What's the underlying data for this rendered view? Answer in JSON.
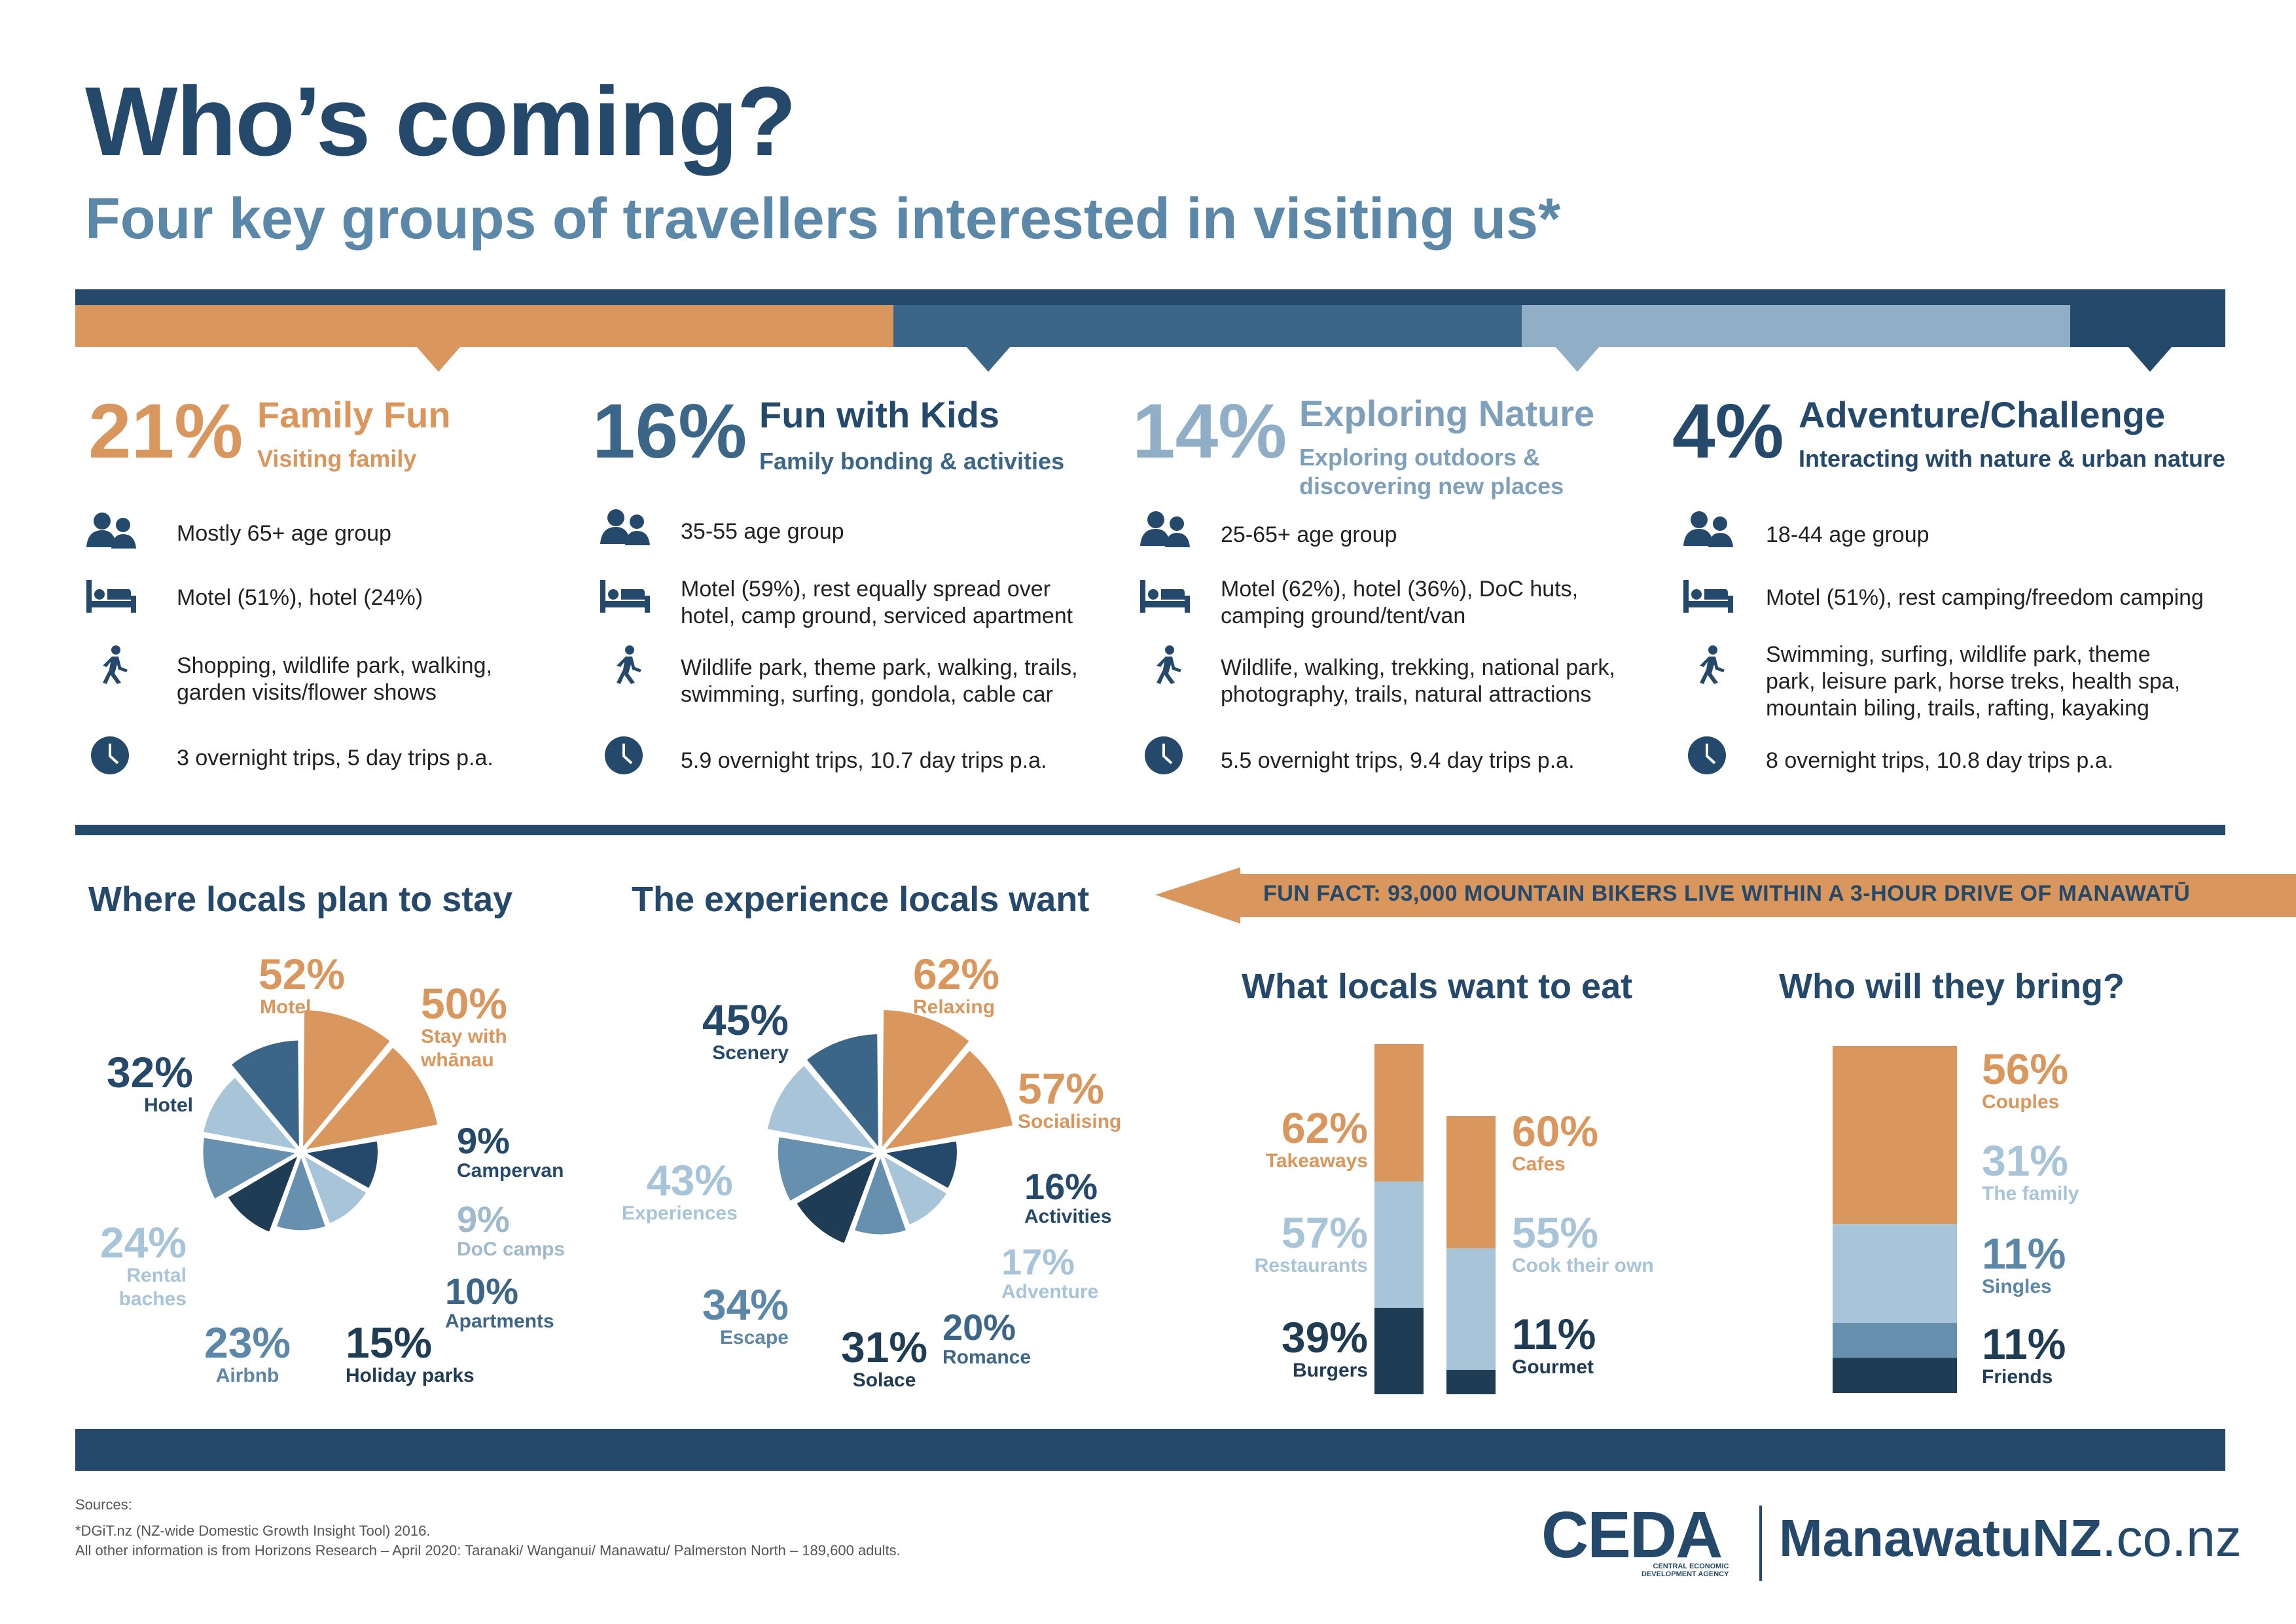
{
  "title": "Who’s coming?",
  "subtitle": "Four key groups of travellers interested in visiting us*",
  "colors": {
    "orange": "#d9975d",
    "navy": "#24496b",
    "mid": "#3b6688",
    "light": "#a8c4d8",
    "lightmid": "#6690ae",
    "dark": "#1f3c55",
    "greylabel": "#9fb9cd"
  },
  "groups": [
    {
      "pct": "21%",
      "name": "Family Fun",
      "sub": "Visiting family",
      "age": "Mostly 65+ age group",
      "stay": "Motel (51%), hotel (24%)",
      "act1": "Shopping, wildlife park, walking,",
      "act2": "garden visits/flower shows",
      "act3": "",
      "trips": "3 overnight trips, 5 day trips p.a."
    },
    {
      "pct": "16%",
      "name": "Fun with Kids",
      "sub": "Family bonding & activities",
      "age": "35-55 age group",
      "stay1": "Motel (59%), rest equally spread over",
      "stay2": "hotel, camp ground, serviced apartment",
      "act1": "Wildlife park, theme park, walking, trails,",
      "act2": "swimming, surfing, gondola, cable car",
      "trips": "5.9 overnight trips, 10.7 day trips p.a."
    },
    {
      "pct": "14%",
      "name": "Exploring Nature",
      "sub1": "Exploring outdoors &",
      "sub2": "discovering new places",
      "age": "25-65+ age group",
      "stay1": "Motel (62%), hotel (36%), DoC huts,",
      "stay2": "camping ground/tent/van",
      "act1": "Wildlife, walking, trekking, national park,",
      "act2": "photography, trails, natural attractions",
      "trips": "5.5 overnight trips, 9.4 day trips p.a."
    },
    {
      "pct": "4%",
      "name": "Adventure/Challenge",
      "sub": "Interacting with nature & urban nature",
      "age": "18-44 age group",
      "stay": "Motel (51%), rest camping/freedom camping",
      "act1": "Swimming, surfing, wildlife park, theme",
      "act2": "park, leisure park, horse treks, health spa,",
      "act3": "mountain biling, trails, rafting, kayaking",
      "trips": "8 overnight trips, 10.8 day trips p.a."
    }
  ],
  "icons": {
    "people": "people-icon",
    "bed": "bed-icon",
    "walk": "walking-person-icon",
    "clock": "clock-icon"
  },
  "fun_fact": "FUN FACT: 93,000 MOUNTAIN BIKERS LIVE WITHIN A 3-HOUR DRIVE OF MANAWATŪ",
  "sections": {
    "stay": "Where locals plan to stay",
    "experience": "The experience locals want",
    "eat": "What locals want to eat",
    "bring": "Who will they bring?"
  },
  "chart_data": [
    {
      "type": "pie",
      "title": "Where locals plan to stay",
      "slices": [
        {
          "label": "Motel",
          "value": 52
        },
        {
          "label": "Stay with whānau",
          "value": 50
        },
        {
          "label": "Campervan",
          "value": 9
        },
        {
          "label": "DoC camps",
          "value": 9
        },
        {
          "label": "Apartments",
          "value": 10
        },
        {
          "label": "Holiday parks",
          "value": 15
        },
        {
          "label": "Airbnb",
          "value": 23
        },
        {
          "label": "Rental baches",
          "value": 24
        },
        {
          "label": "Hotel",
          "value": 32
        }
      ]
    },
    {
      "type": "pie",
      "title": "The experience locals want",
      "slices": [
        {
          "label": "Relaxing",
          "value": 62
        },
        {
          "label": "Socialising",
          "value": 57
        },
        {
          "label": "Activities",
          "value": 16
        },
        {
          "label": "Adventure",
          "value": 17
        },
        {
          "label": "Romance",
          "value": 20
        },
        {
          "label": "Solace",
          "value": 31
        },
        {
          "label": "Escape",
          "value": 34
        },
        {
          "label": "Experiences",
          "value": 43
        },
        {
          "label": "Scenery",
          "value": 45
        }
      ]
    },
    {
      "type": "bar",
      "title": "What locals want to eat",
      "series": [
        {
          "categories": [
            "Takeaways",
            "Restaurants",
            "Burgers"
          ],
          "values": [
            62,
            57,
            39
          ]
        },
        {
          "categories": [
            "Cafes",
            "Cook their own",
            "Gourmet"
          ],
          "values": [
            60,
            55,
            11
          ]
        }
      ]
    },
    {
      "type": "bar",
      "title": "Who will they bring?",
      "categories": [
        "Couples",
        "The family",
        "Singles",
        "Friends"
      ],
      "values": [
        56,
        31,
        11,
        11
      ]
    }
  ],
  "stay_labels": [
    {
      "p": "52%",
      "n": "Motel"
    },
    {
      "p": "50%",
      "n": "Stay with",
      "n2": "whānau"
    },
    {
      "p": "9%",
      "n": "Campervan"
    },
    {
      "p": "9%",
      "n": "DoC camps"
    },
    {
      "p": "10%",
      "n": "Apartments"
    },
    {
      "p": "15%",
      "n": "Holiday parks"
    },
    {
      "p": "23%",
      "n": "Airbnb"
    },
    {
      "p": "24%",
      "n": "Rental",
      "n2": "baches"
    },
    {
      "p": "32%",
      "n": "Hotel"
    }
  ],
  "exp_labels": [
    {
      "p": "62%",
      "n": "Relaxing"
    },
    {
      "p": "57%",
      "n": "Socialising"
    },
    {
      "p": "16%",
      "n": "Activities"
    },
    {
      "p": "17%",
      "n": "Adventure"
    },
    {
      "p": "20%",
      "n": "Romance"
    },
    {
      "p": "31%",
      "n": "Solace"
    },
    {
      "p": "34%",
      "n": "Escape"
    },
    {
      "p": "43%",
      "n": "Experiences"
    },
    {
      "p": "45%",
      "n": "Scenery"
    }
  ],
  "eat_labels": [
    {
      "p": "62%",
      "n": "Takeaways"
    },
    {
      "p": "57%",
      "n": "Restaurants"
    },
    {
      "p": "39%",
      "n": "Burgers"
    },
    {
      "p": "60%",
      "n": "Cafes"
    },
    {
      "p": "55%",
      "n": "Cook their own"
    },
    {
      "p": "11%",
      "n": "Gourmet"
    }
  ],
  "bring_labels": [
    {
      "p": "56%",
      "n": "Couples"
    },
    {
      "p": "31%",
      "n": "The family"
    },
    {
      "p": "11%",
      "n": "Singles"
    },
    {
      "p": "11%",
      "n": "Friends"
    }
  ],
  "sources": {
    "heading": "Sources:",
    "line1": "*DGiT.nz (NZ-wide Domestic Growth Insight Tool) 2016.",
    "line2": "All other information is from Horizons Research – April 2020: Taranaki/ Wanganui/ Manawatu/ Palmerston North – 189,600 adults."
  },
  "logo": {
    "ceda": "CEDA",
    "ceda_sub1": "CENTRAL ECONOMIC",
    "ceda_sub2": "DEVELOPMENT AGENCY",
    "site_bold": "ManawatuNZ",
    "site_rest": ".co.nz"
  }
}
